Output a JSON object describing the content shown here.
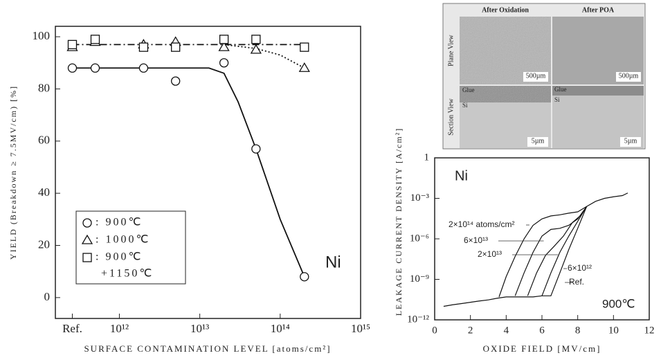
{
  "micrograph": {
    "columns": [
      "After Oxidation",
      "After POA"
    ],
    "rows": [
      "Plane View",
      "Section View"
    ],
    "scale_plane": "500µm",
    "scale_section": "5µm",
    "glue": "Glue",
    "si": "Si"
  },
  "chart_data": [
    {
      "type": "scatter",
      "xlog": true,
      "x_label": "SURFACE CONTAMINATION LEVEL [atoms/cm²]",
      "y_label": "YIELD (Breakdown ≥ 7.5MV/cm) [%]",
      "annotation": "Ni",
      "xlim": [
        160000000000.0,
        1000000000000000.0
      ],
      "ylim": [
        -8,
        104
      ],
      "xticks": [
        {
          "value": 260000000000.0,
          "label": "Ref."
        },
        {
          "value": 1000000000000.0,
          "label": "10¹²"
        },
        {
          "value": 10000000000000.0,
          "label": "10¹³"
        },
        {
          "value": 100000000000000.0,
          "label": "10¹⁴"
        },
        {
          "value": 1000000000000000.0,
          "label": "10¹⁵"
        }
      ],
      "yticks": [
        0,
        20,
        40,
        60,
        80,
        100
      ],
      "x": [
        260000000000.0,
        500000000000.0,
        2000000000000.0,
        5000000000000.0,
        20000000000000.0,
        50000000000000.0,
        200000000000000.0
      ],
      "series": [
        {
          "name": ": 900℃",
          "marker": "circle",
          "color": "#111",
          "values": [
            88,
            88,
            88,
            83,
            90,
            57,
            8
          ]
        },
        {
          "name": ": 1000℃",
          "marker": "triangle",
          "color": "#111",
          "values": [
            96,
            98,
            97,
            98,
            96,
            95,
            88
          ]
        },
        {
          "name": ": 900℃",
          "name_line2": "+1150℃",
          "marker": "square",
          "color": "#111",
          "values": [
            97,
            99,
            96,
            96,
            99,
            99,
            96
          ]
        }
      ],
      "curves": [
        {
          "style": "solid",
          "x": [
            260000000000.0,
            500000000000.0,
            2000000000000.0,
            5000000000000.0,
            13000000000000.0,
            20000000000000.0,
            30000000000000.0,
            50000000000000.0,
            100000000000000.0,
            200000000000000.0
          ],
          "values": [
            88,
            88,
            88,
            88,
            88,
            86,
            75,
            57,
            30,
            8
          ]
        },
        {
          "style": "dashdot",
          "x": [
            260000000000.0,
            200000000000000.0
          ],
          "values": [
            97,
            97
          ]
        },
        {
          "style": "dotted",
          "x": [
            20000000000000.0,
            50000000000000.0,
            100000000000000.0,
            200000000000000.0
          ],
          "values": [
            97,
            95.5,
            93,
            88
          ]
        }
      ]
    },
    {
      "type": "line",
      "ylog": true,
      "x_label": "OXIDE FIELD [MV/cm]",
      "y_label": "LEAKAGE CURRENT DENSITY [A/cm²]",
      "annotations": [
        "Ni",
        "900℃"
      ],
      "xlim": [
        0,
        12
      ],
      "ylim": [
        1e-12,
        1
      ],
      "xticks": [
        0,
        2,
        4,
        6,
        8,
        10,
        12
      ],
      "yticks": [
        {
          "value": 1e-12,
          "label": "10⁻¹²"
        },
        {
          "value": 1e-09,
          "label": "10⁻⁹"
        },
        {
          "value": 1e-06,
          "label": "10⁻⁶"
        },
        {
          "value": 0.001,
          "label": "10⁻³"
        },
        1
      ],
      "series": [
        {
          "name": "2×10¹⁴ atoms/cm²",
          "color": "#111",
          "x": [
            3.6,
            4,
            4.5,
            5,
            5.5,
            6,
            6.5,
            7,
            7.5,
            8,
            8.5,
            9,
            9.5,
            10,
            10.5,
            10.8
          ],
          "values": [
            5e-11,
            1.6e-09,
            5e-08,
            1e-06,
            1e-05,
            3e-05,
            5e-05,
            6e-05,
            8e-05,
            0.0001,
            0.00025,
            0.0006,
            0.001,
            0.0013,
            0.0016,
            0.0025
          ]
        },
        {
          "name": "6×10¹³",
          "color": "#111",
          "x": [
            4.5,
            5,
            5.5,
            6,
            6.5,
            7,
            7.5,
            8,
            8.5
          ],
          "values": [
            6e-11,
            3e-09,
            1e-07,
            1.6e-06,
            5e-06,
            6e-06,
            1e-05,
            3e-05,
            0.00025
          ]
        },
        {
          "name": "2×10¹³",
          "color": "#111",
          "x": [
            5.2,
            5.7,
            6.2,
            6.7,
            7.2,
            7.7,
            8.2,
            8.5
          ],
          "values": [
            6e-11,
            3e-09,
            6e-08,
            3e-07,
            1.6e-06,
            1.6e-05,
            6e-05,
            0.00025
          ]
        },
        {
          "name": "6×10¹²",
          "color": "#111",
          "x": [
            6,
            6.5,
            7,
            7.5,
            8,
            8.5
          ],
          "values": [
            6e-11,
            3e-09,
            1e-07,
            1.6e-06,
            2e-05,
            0.00025
          ]
        },
        {
          "name": "Ref.",
          "color": "#111",
          "x": [
            0.5,
            1,
            1.5,
            2,
            2.5,
            3,
            3.5,
            4,
            4.5,
            5,
            5.5,
            6,
            6.5,
            7,
            7.5,
            8,
            8.5
          ],
          "values": [
            1e-11,
            1.3e-11,
            1.6e-11,
            2e-11,
            2.5e-11,
            3e-11,
            4e-11,
            5e-11,
            5e-11,
            5e-11,
            5e-11,
            6e-11,
            6e-11,
            3e-09,
            1.6e-07,
            6e-06,
            0.00025
          ]
        }
      ]
    }
  ]
}
